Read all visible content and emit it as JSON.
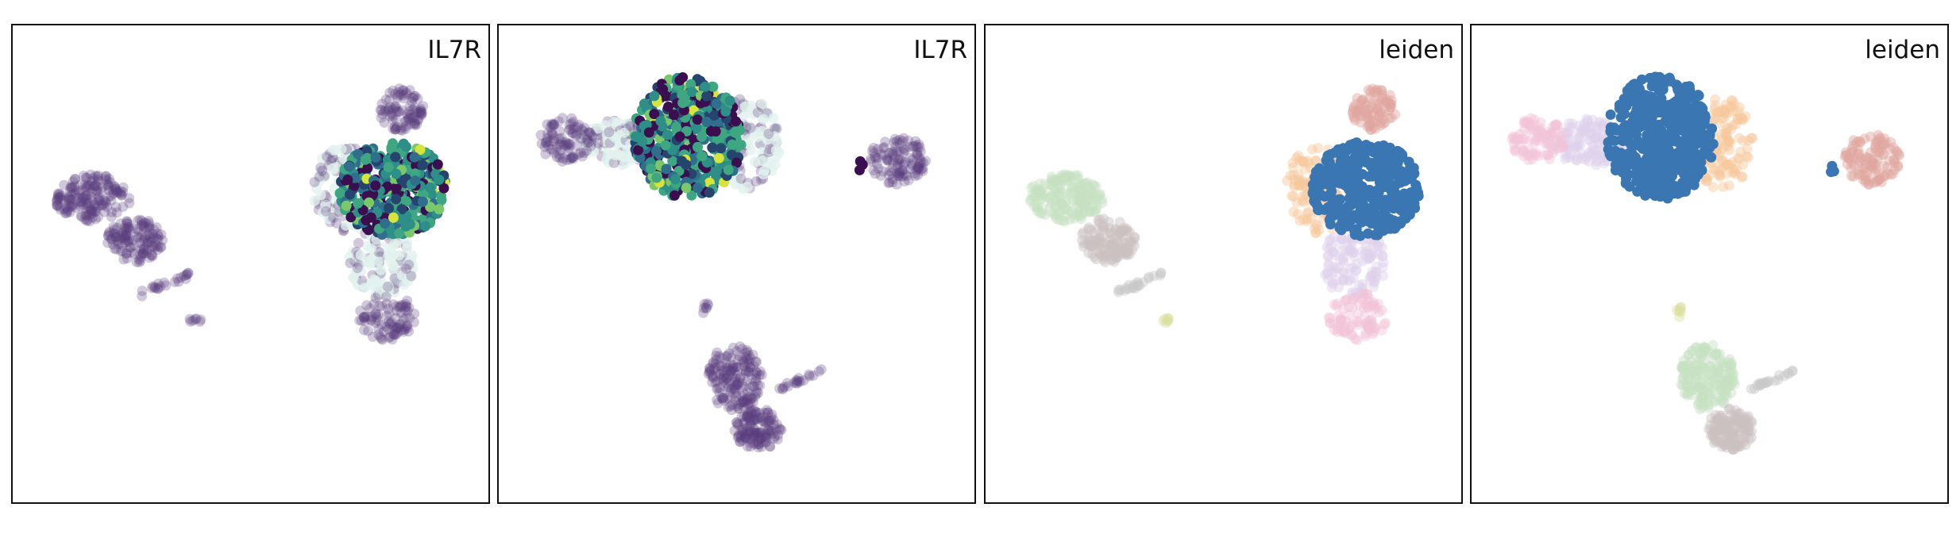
{
  "chart_data": [
    {
      "type": "scatter",
      "title": "IL7R",
      "highlight_cluster": 0,
      "color_mode": "expression",
      "background_color": "#5b3c7e"
    },
    {
      "type": "scatter",
      "title": "IL7R",
      "highlight_cluster": 1,
      "color_mode": "expression",
      "background_color": "#5b3c7e"
    },
    {
      "type": "scatter",
      "title": "leiden",
      "highlight_cluster": 0,
      "color_mode": "cluster",
      "highlight_color": "#3a77b2"
    },
    {
      "type": "scatter",
      "title": "leiden",
      "highlight_cluster": 1,
      "color_mode": "cluster",
      "highlight_color": "#3a77b2"
    }
  ],
  "colors": {
    "expression_ramp": [
      "#e2f1ee",
      "#3b0f4f",
      "#26456e",
      "#2f6e8c",
      "#2d8f87",
      "#3ea781",
      "#7bc86a",
      "#d7e43a"
    ],
    "cluster_palette": [
      "#3a77b2",
      "#f6c89c",
      "#c5dfc1",
      "#ddd1ea",
      "#f2c3d7",
      "#e1a6a0",
      "#ccc2c0",
      "#c7c7c7",
      "#d9dfa0"
    ]
  }
}
